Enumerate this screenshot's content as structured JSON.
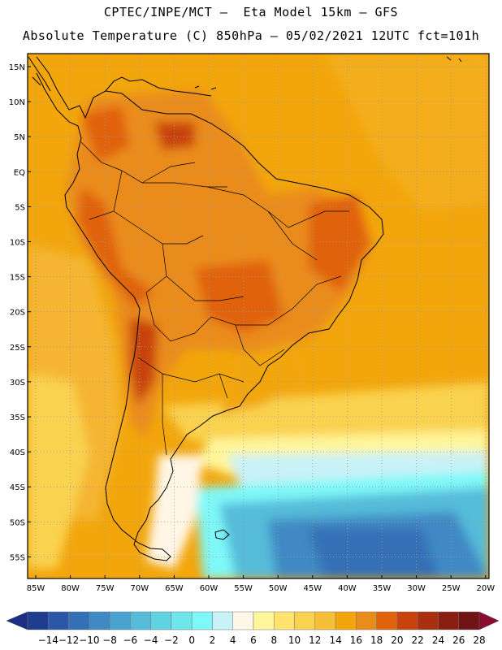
{
  "header": {
    "line1": "CPTEC/INPE/MCT –  Eta Model 15km – GFS",
    "line2": "Absolute Temperature (C) 850hPa – 05/02/2021 12UTC fct=101h"
  },
  "map": {
    "lat_labels": [
      "15N",
      "10N",
      "5N",
      "EQ",
      "5S",
      "10S",
      "15S",
      "20S",
      "25S",
      "30S",
      "35S",
      "40S",
      "45S",
      "50S",
      "55S"
    ],
    "lon_labels": [
      "85W",
      "80W",
      "75W",
      "70W",
      "65W",
      "60W",
      "55W",
      "50W",
      "45W",
      "40W",
      "35W",
      "30W",
      "25W",
      "20W"
    ]
  },
  "colorbar": {
    "labels": [
      "-14",
      "-12",
      "-10",
      "-8",
      "-6",
      "-4",
      "-2",
      "0",
      "2",
      "4",
      "6",
      "8",
      "10",
      "12",
      "14",
      "16",
      "18",
      "20",
      "22",
      "24",
      "26",
      "28"
    ],
    "colors": [
      "#1f3d8f",
      "#2a58a6",
      "#3470b6",
      "#3f89c4",
      "#4aa3cf",
      "#55bcd9",
      "#5fd3e2",
      "#6fe6ec",
      "#7ff8f8",
      "#c8f2f7",
      "#fff6e6",
      "#fff59a",
      "#ffe36e",
      "#f9d24f",
      "#f5bf38",
      "#f2a60c",
      "#ea8c1a",
      "#e0620c",
      "#c8420c",
      "#a83010",
      "#8a1e10",
      "#701414"
    ],
    "under_color": "#1c2f85",
    "over_color": "#8a0b2e"
  }
}
